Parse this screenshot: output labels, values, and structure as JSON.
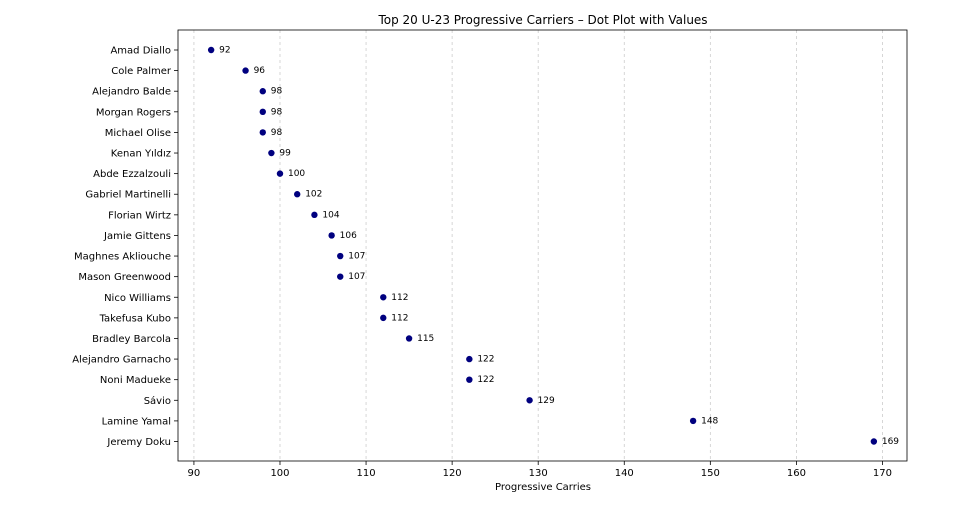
{
  "chart_data": {
    "type": "scatter",
    "title": "Top 20 U-23 Progressive Carriers – Dot Plot with Values",
    "xlabel": "Progressive Carries",
    "ylabel": "",
    "xlim": [
      88.15,
      172.85
    ],
    "x_ticks": [
      90,
      100,
      110,
      120,
      130,
      140,
      150,
      160,
      170
    ],
    "grid": "x-dashed",
    "marker_color": "#00007f",
    "categories": [
      "Amad Diallo",
      "Cole Palmer",
      "Alejandro Balde",
      "Morgan Rogers",
      "Michael Olise",
      "Kenan Yıldız",
      "Abde Ezzalzouli",
      "Gabriel Martinelli",
      "Florian Wirtz",
      "Jamie Gittens",
      "Maghnes Akliouche",
      "Mason Greenwood",
      "Nico Williams",
      "Takefusa Kubo",
      "Bradley Barcola",
      "Alejandro Garnacho",
      "Noni Madueke",
      "Sávio",
      "Lamine Yamal",
      "Jeremy Doku"
    ],
    "values": [
      92,
      96,
      98,
      98,
      98,
      99,
      100,
      102,
      104,
      106,
      107,
      107,
      112,
      112,
      115,
      122,
      122,
      129,
      148,
      169
    ]
  }
}
